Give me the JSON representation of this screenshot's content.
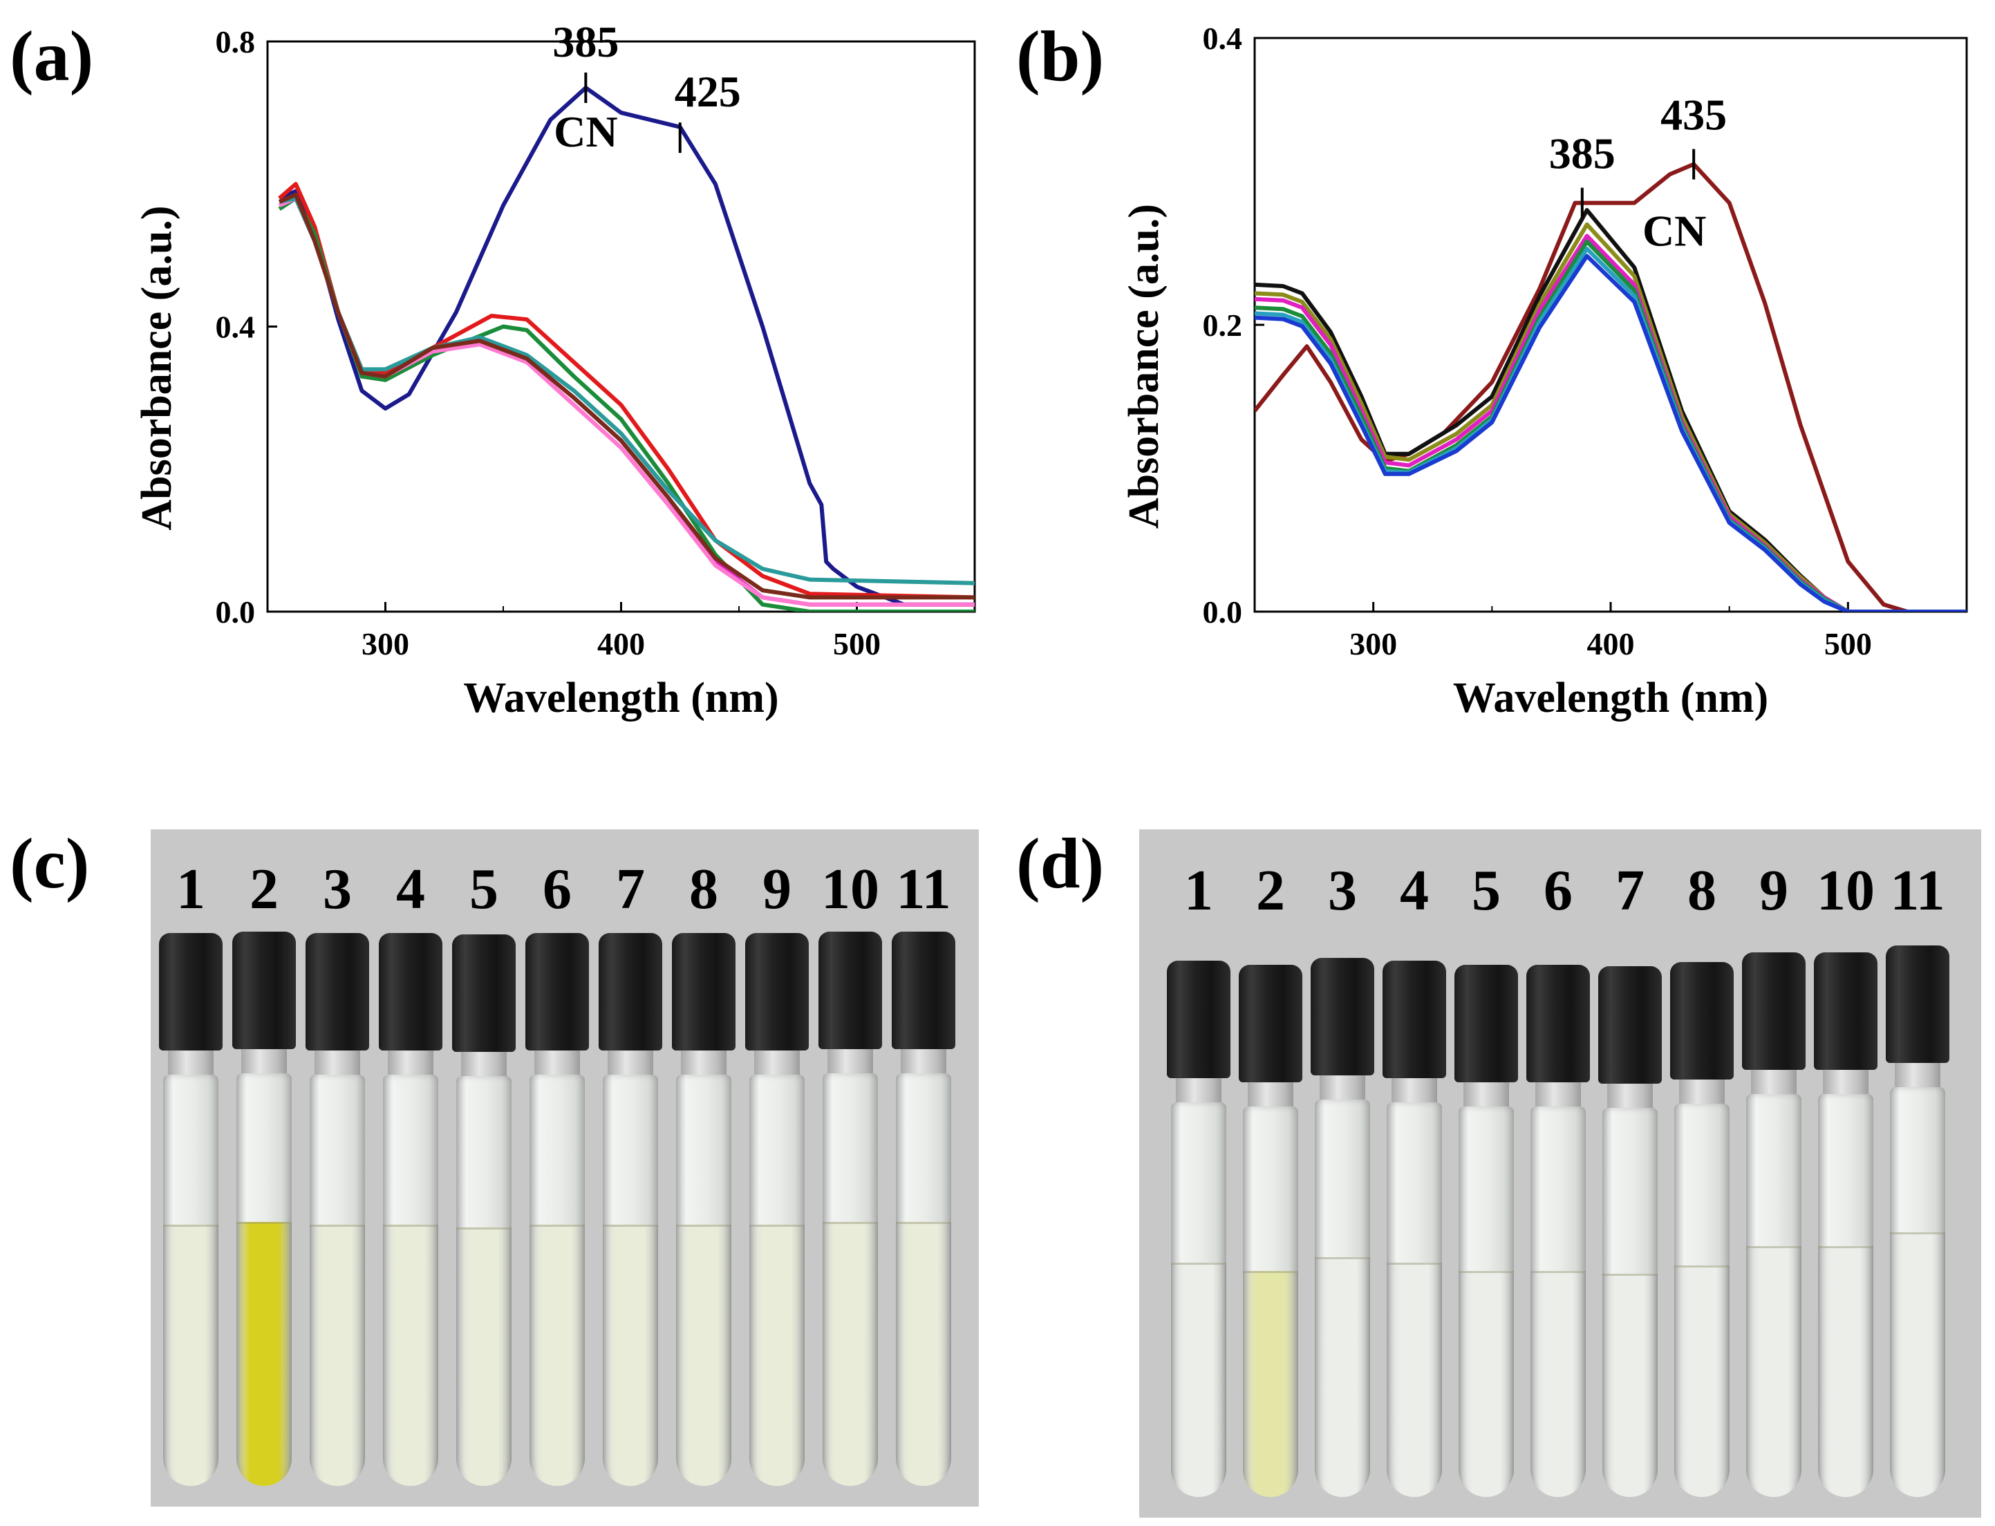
{
  "labels": {
    "a": "(a)",
    "b": "(b)",
    "c": "(c)",
    "d": "(d)"
  },
  "chart_data": [
    {
      "panel": "a",
      "type": "line",
      "xlabel": "Wavelength (nm)",
      "ylabel": "Absorbance (a.u.)",
      "xlim": [
        250,
        550
      ],
      "ylim": [
        0.0,
        0.8
      ],
      "xticks": [
        "300",
        "400",
        "500"
      ],
      "yticks": [
        "0.0",
        "0.4",
        "0.8"
      ],
      "annotations": [
        "385",
        "425",
        "CN"
      ],
      "series": [
        {
          "color": "#1a1a8c",
          "x": [
            255,
            262,
            270,
            280,
            290,
            300,
            310,
            330,
            350,
            370,
            385,
            400,
            425,
            440,
            460,
            480,
            485,
            487,
            490,
            500,
            520,
            550
          ],
          "y": [
            0.58,
            0.59,
            0.53,
            0.41,
            0.31,
            0.285,
            0.305,
            0.42,
            0.57,
            0.69,
            0.735,
            0.7,
            0.68,
            0.6,
            0.4,
            0.18,
            0.15,
            0.07,
            0.06,
            0.035,
            0.01,
            0.01
          ]
        },
        {
          "color": "#e31a1c",
          "x": [
            255,
            262,
            270,
            280,
            290,
            300,
            320,
            345,
            360,
            380,
            400,
            420,
            440,
            460,
            480,
            550
          ],
          "y": [
            0.58,
            0.6,
            0.54,
            0.42,
            0.34,
            0.335,
            0.37,
            0.415,
            0.41,
            0.35,
            0.29,
            0.2,
            0.1,
            0.05,
            0.025,
            0.02
          ]
        },
        {
          "color": "#1a8c3a",
          "x": [
            255,
            262,
            270,
            280,
            290,
            300,
            320,
            350,
            360,
            380,
            400,
            420,
            440,
            460,
            480,
            550
          ],
          "y": [
            0.565,
            0.58,
            0.53,
            0.42,
            0.33,
            0.325,
            0.36,
            0.4,
            0.395,
            0.33,
            0.27,
            0.18,
            0.08,
            0.01,
            0.0,
            0.0
          ]
        },
        {
          "color": "#e020c0",
          "x": [
            255,
            262,
            270,
            280,
            290,
            300,
            320,
            340,
            360,
            380,
            400,
            420,
            440,
            460,
            480,
            550
          ],
          "y": [
            0.57,
            0.58,
            0.52,
            0.42,
            0.335,
            0.33,
            0.37,
            0.38,
            0.355,
            0.3,
            0.24,
            0.16,
            0.07,
            0.02,
            0.01,
            0.01
          ]
        },
        {
          "color": "#ff7ad0",
          "x": [
            255,
            262,
            270,
            280,
            290,
            300,
            320,
            340,
            360,
            380,
            400,
            420,
            440,
            460,
            480,
            550
          ],
          "y": [
            0.57,
            0.58,
            0.52,
            0.42,
            0.335,
            0.33,
            0.365,
            0.375,
            0.35,
            0.29,
            0.23,
            0.15,
            0.065,
            0.02,
            0.01,
            0.01
          ]
        },
        {
          "color": "#2a9a9a",
          "x": [
            255,
            262,
            270,
            280,
            290,
            300,
            320,
            340,
            360,
            380,
            400,
            420,
            440,
            460,
            480,
            550
          ],
          "y": [
            0.575,
            0.58,
            0.52,
            0.42,
            0.34,
            0.34,
            0.37,
            0.385,
            0.36,
            0.31,
            0.25,
            0.17,
            0.1,
            0.06,
            0.045,
            0.04
          ]
        },
        {
          "color": "#7a2a1a",
          "x": [
            255,
            262,
            270,
            280,
            290,
            300,
            320,
            340,
            360,
            380,
            400,
            420,
            440,
            460,
            480,
            550
          ],
          "y": [
            0.575,
            0.585,
            0.52,
            0.42,
            0.335,
            0.33,
            0.37,
            0.38,
            0.355,
            0.3,
            0.24,
            0.16,
            0.075,
            0.03,
            0.02,
            0.02
          ]
        }
      ]
    },
    {
      "panel": "b",
      "type": "line",
      "xlabel": "Wavelength (nm)",
      "ylabel": "Absorbance (a.u.)",
      "xlim": [
        250,
        550
      ],
      "ylim": [
        0.0,
        0.4
      ],
      "xticks": [
        "300",
        "400",
        "500"
      ],
      "yticks": [
        "0.0",
        "0.2",
        "0.4"
      ],
      "annotations": [
        "385",
        "435",
        "CN"
      ],
      "series": [
        {
          "color": "#8b1a1a",
          "x": [
            250,
            262,
            272,
            282,
            295,
            305,
            315,
            330,
            350,
            370,
            385,
            400,
            410,
            425,
            435,
            450,
            465,
            480,
            500,
            515,
            525,
            550
          ],
          "y": [
            0.14,
            0.165,
            0.185,
            0.16,
            0.12,
            0.105,
            0.11,
            0.125,
            0.16,
            0.225,
            0.285,
            0.285,
            0.285,
            0.305,
            0.312,
            0.285,
            0.215,
            0.13,
            0.035,
            0.005,
            0.0,
            0.0
          ]
        },
        {
          "color": "#111111",
          "x": [
            250,
            262,
            270,
            282,
            295,
            305,
            315,
            335,
            350,
            370,
            390,
            410,
            430,
            450,
            465,
            480,
            490,
            500,
            550
          ],
          "y": [
            0.228,
            0.227,
            0.222,
            0.195,
            0.15,
            0.11,
            0.11,
            0.13,
            0.15,
            0.22,
            0.28,
            0.24,
            0.14,
            0.07,
            0.05,
            0.025,
            0.01,
            0.0,
            0.0
          ]
        },
        {
          "color": "#8c8c1a",
          "x": [
            250,
            262,
            270,
            282,
            295,
            305,
            315,
            335,
            350,
            370,
            390,
            410,
            430,
            450,
            465,
            480,
            490,
            500,
            550
          ],
          "y": [
            0.222,
            0.221,
            0.216,
            0.19,
            0.145,
            0.108,
            0.106,
            0.124,
            0.144,
            0.214,
            0.27,
            0.234,
            0.136,
            0.068,
            0.048,
            0.024,
            0.01,
            0.0,
            0.0
          ]
        },
        {
          "color": "#e020c0",
          "x": [
            250,
            262,
            270,
            282,
            295,
            305,
            315,
            335,
            350,
            370,
            390,
            410,
            430,
            450,
            465,
            480,
            490,
            500,
            550
          ],
          "y": [
            0.218,
            0.217,
            0.212,
            0.186,
            0.14,
            0.104,
            0.102,
            0.12,
            0.14,
            0.21,
            0.262,
            0.228,
            0.132,
            0.066,
            0.046,
            0.022,
            0.01,
            0.0,
            0.0
          ]
        },
        {
          "color": "#1a8c3a",
          "x": [
            250,
            262,
            270,
            282,
            295,
            305,
            315,
            335,
            350,
            370,
            390,
            410,
            430,
            450,
            465,
            480,
            490,
            500,
            550
          ],
          "y": [
            0.212,
            0.211,
            0.206,
            0.18,
            0.136,
            0.1,
            0.098,
            0.116,
            0.136,
            0.205,
            0.258,
            0.224,
            0.13,
            0.064,
            0.045,
            0.021,
            0.009,
            0.0,
            0.0
          ]
        },
        {
          "color": "#2aa0c0",
          "x": [
            250,
            262,
            270,
            282,
            295,
            305,
            315,
            335,
            350,
            370,
            390,
            410,
            430,
            450,
            465,
            480,
            490,
            500,
            550
          ],
          "y": [
            0.208,
            0.207,
            0.202,
            0.176,
            0.132,
            0.098,
            0.097,
            0.114,
            0.134,
            0.202,
            0.253,
            0.22,
            0.128,
            0.063,
            0.044,
            0.02,
            0.008,
            0.0,
            0.0
          ]
        },
        {
          "color": "#1a3ad0",
          "x": [
            250,
            262,
            270,
            282,
            295,
            305,
            315,
            335,
            350,
            370,
            390,
            410,
            430,
            450,
            465,
            480,
            490,
            500,
            550
          ],
          "y": [
            0.205,
            0.204,
            0.199,
            0.173,
            0.13,
            0.096,
            0.096,
            0.112,
            0.132,
            0.198,
            0.248,
            0.216,
            0.126,
            0.062,
            0.043,
            0.019,
            0.007,
            0.0,
            0.0
          ]
        }
      ]
    }
  ],
  "photos": [
    {
      "panel": "c",
      "vial_numbers": [
        "1",
        "2",
        "3",
        "4",
        "5",
        "6",
        "7",
        "8",
        "9",
        "10",
        "11"
      ],
      "highlight_vial": 2,
      "highlight_color": "#d8d020",
      "liquid_color": "#e8ecd8"
    },
    {
      "panel": "d",
      "vial_numbers": [
        "1",
        "2",
        "3",
        "4",
        "5",
        "6",
        "7",
        "8",
        "9",
        "10",
        "11"
      ],
      "highlight_vial": 2,
      "highlight_color": "#e4e6a8",
      "liquid_color": "#eceeea"
    }
  ]
}
